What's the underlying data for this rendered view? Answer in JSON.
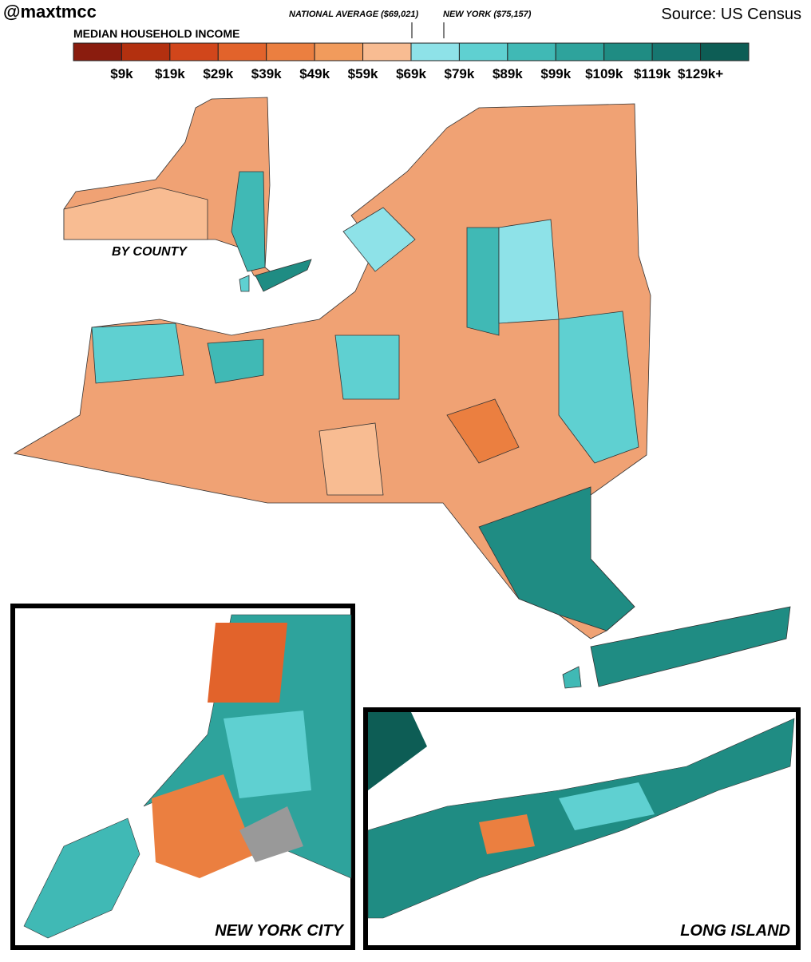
{
  "header": {
    "handle": "@maxtmcc",
    "source": "Source: US Census"
  },
  "legend": {
    "title": "MEDIAN HOUSEHOLD INCOME",
    "colors": [
      "#8a1c0e",
      "#b3300f",
      "#d1461b",
      "#e2632b",
      "#eb7f40",
      "#f19b5c",
      "#f8bc92",
      "#8ee2e8",
      "#5fd0d1",
      "#40b9b5",
      "#2ea39c",
      "#1f8c83",
      "#167670",
      "#0d5d55"
    ],
    "labels": [
      "$9k",
      "$19k",
      "$29k",
      "$39k",
      "$49k",
      "$59k",
      "$69k",
      "$79k",
      "$89k",
      "$99k",
      "$109k",
      "$119k",
      "$129k+"
    ],
    "markers": [
      "NATIONAL AVERAGE ($69,021)",
      "NEW YORK ($75,157)"
    ]
  },
  "insets": {
    "county": "BY COUNTY",
    "nyc": "NEW YORK CITY",
    "long_island": "LONG ISLAND"
  }
}
